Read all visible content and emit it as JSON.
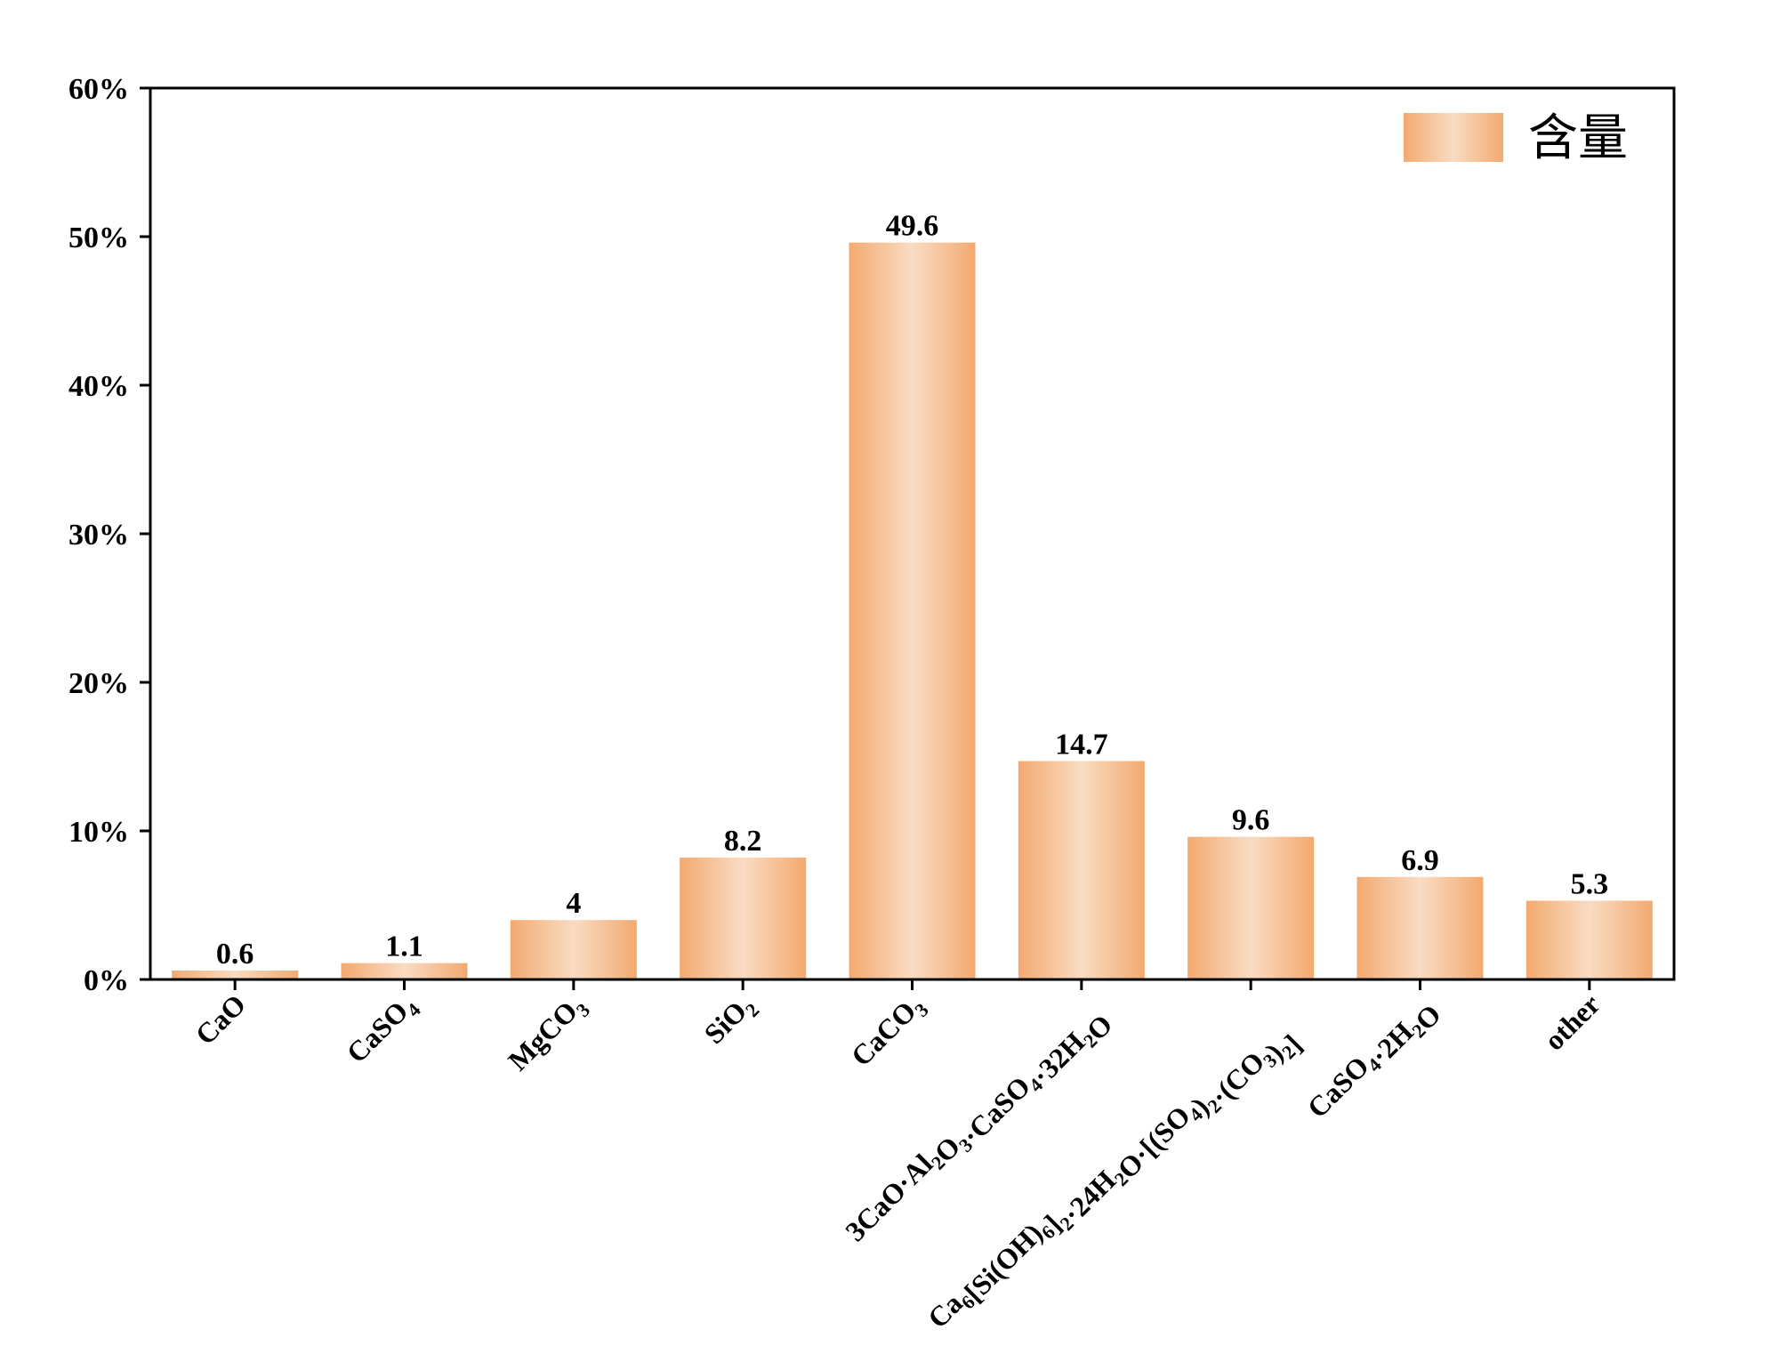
{
  "chart_data": {
    "type": "bar",
    "title": "",
    "xlabel": "",
    "ylabel": "",
    "ylim": [
      0,
      60
    ],
    "y_ticks": [
      {
        "value": 0,
        "label": "0%"
      },
      {
        "value": 10,
        "label": "10%"
      },
      {
        "value": 20,
        "label": "20%"
      },
      {
        "value": 30,
        "label": "30%"
      },
      {
        "value": 40,
        "label": "40%"
      },
      {
        "value": 50,
        "label": "50%"
      },
      {
        "value": 60,
        "label": "60%"
      }
    ],
    "categories": [
      "CaO",
      "CaSO4",
      "MgCO3",
      "SiO2",
      "CaCO3",
      "3CaO·Al2O3·CaSO4·32H2O",
      "Ca6[Si(OH)6]2·24H2O·[(SO4)2·(CO3)2]",
      "CaSO4·2H2O",
      "other"
    ],
    "category_parts": [
      [
        [
          "CaO",
          false
        ]
      ],
      [
        [
          "CaSO",
          false
        ],
        [
          "4",
          true
        ]
      ],
      [
        [
          "MgCO",
          false
        ],
        [
          "3",
          true
        ]
      ],
      [
        [
          "SiO",
          false
        ],
        [
          "2",
          true
        ]
      ],
      [
        [
          "CaCO",
          false
        ],
        [
          "3",
          true
        ]
      ],
      [
        [
          "3CaO·Al",
          false
        ],
        [
          "2",
          true
        ],
        [
          "O",
          false
        ],
        [
          "3",
          true
        ],
        [
          "·CaSO",
          false
        ],
        [
          "4",
          true
        ],
        [
          "·32H",
          false
        ],
        [
          "2",
          true
        ],
        [
          "O",
          false
        ]
      ],
      [
        [
          "Ca",
          false
        ],
        [
          "6",
          true
        ],
        [
          "[Si(OH)",
          false
        ],
        [
          "6",
          true
        ],
        [
          "]",
          false
        ],
        [
          "2",
          true
        ],
        [
          "·24H",
          false
        ],
        [
          "2",
          true
        ],
        [
          "O·[(SO",
          false
        ],
        [
          "4",
          true
        ],
        [
          ")",
          false
        ],
        [
          "2",
          true
        ],
        [
          "·(CO",
          false
        ],
        [
          "3",
          true
        ],
        [
          ")",
          false
        ],
        [
          "2",
          true
        ],
        [
          "]",
          false
        ]
      ],
      [
        [
          "CaSO",
          false
        ],
        [
          "4",
          true
        ],
        [
          "·2H",
          false
        ],
        [
          "2",
          true
        ],
        [
          "O",
          false
        ]
      ],
      [
        [
          "other",
          false
        ]
      ]
    ],
    "series": [
      {
        "name": "含量",
        "values": [
          0.6,
          1.1,
          4,
          8.2,
          49.6,
          14.7,
          9.6,
          6.9,
          5.3
        ],
        "labels": [
          "0.6",
          "1.1",
          "4",
          "8.2",
          "49.6",
          "14.7",
          "9.6",
          "6.9",
          "5.3"
        ]
      }
    ],
    "grid": false,
    "legend": "top-right",
    "colors": {
      "bar_edge": "#f3a96f",
      "bar_center": "#f9dcc3",
      "axis": "#000000"
    }
  }
}
